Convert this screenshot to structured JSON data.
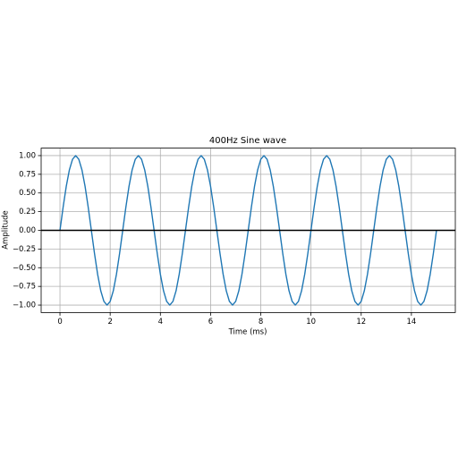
{
  "chart_data": {
    "type": "line",
    "title": "400Hz Sine wave",
    "xlabel": "Time (ms)",
    "ylabel": "Amplitude",
    "x": [
      0,
      0.125,
      0.25,
      0.375,
      0.5,
      0.625,
      0.75,
      0.875,
      1,
      1.125,
      1.25,
      1.375,
      1.5,
      1.625,
      1.75,
      1.875,
      2,
      2.125,
      2.25,
      2.375,
      2.5,
      2.625,
      2.75,
      2.875,
      3,
      3.125,
      3.25,
      3.375,
      3.5,
      3.625,
      3.75,
      3.875,
      4,
      4.125,
      4.25,
      4.375,
      4.5,
      4.625,
      4.75,
      4.875,
      5,
      5.125,
      5.25,
      5.375,
      5.5,
      5.625,
      5.75,
      5.875,
      6,
      6.125,
      6.25,
      6.375,
      6.5,
      6.625,
      6.75,
      6.875,
      7,
      7.125,
      7.25,
      7.375,
      7.5,
      7.625,
      7.75,
      7.875,
      8,
      8.125,
      8.25,
      8.375,
      8.5,
      8.625,
      8.75,
      8.875,
      9,
      9.125,
      9.25,
      9.375,
      9.5,
      9.625,
      9.75,
      9.875,
      10,
      10.125,
      10.25,
      10.375,
      10.5,
      10.625,
      10.75,
      10.875,
      11,
      11.125,
      11.25,
      11.375,
      11.5,
      11.625,
      11.75,
      11.875,
      12,
      12.125,
      12.25,
      12.375,
      12.5,
      12.625,
      12.75,
      12.875,
      13,
      13.125,
      13.25,
      13.375,
      13.5,
      13.625,
      13.75,
      13.875,
      14,
      14.125,
      14.25,
      14.375,
      14.5,
      14.625,
      14.75,
      14.875,
      15
    ],
    "values": [
      0,
      0.309,
      0.5878,
      0.809,
      0.9511,
      1,
      0.9511,
      0.809,
      0.5878,
      0.309,
      0,
      -0.309,
      -0.5878,
      -0.809,
      -0.9511,
      -1,
      -0.9511,
      -0.809,
      -0.5878,
      -0.309,
      0,
      0.309,
      0.5878,
      0.809,
      0.9511,
      1,
      0.9511,
      0.809,
      0.5878,
      0.309,
      0,
      -0.309,
      -0.5878,
      -0.809,
      -0.9511,
      -1,
      -0.9511,
      -0.809,
      -0.5878,
      -0.309,
      0,
      0.309,
      0.5878,
      0.809,
      0.9511,
      1,
      0.9511,
      0.809,
      0.5878,
      0.309,
      0,
      -0.309,
      -0.5878,
      -0.809,
      -0.9511,
      -1,
      -0.9511,
      -0.809,
      -0.5878,
      -0.309,
      0,
      0.309,
      0.5878,
      0.809,
      0.9511,
      1,
      0.9511,
      0.809,
      0.5878,
      0.309,
      0,
      -0.309,
      -0.5878,
      -0.809,
      -0.9511,
      -1,
      -0.9511,
      -0.809,
      -0.5878,
      -0.309,
      0,
      0.309,
      0.5878,
      0.809,
      0.9511,
      1,
      0.9511,
      0.809,
      0.5878,
      0.309,
      0,
      -0.309,
      -0.5878,
      -0.809,
      -0.9511,
      -1,
      -0.9511,
      -0.809,
      -0.5878,
      -0.309,
      0,
      0.309,
      0.5878,
      0.809,
      0.9511,
      1,
      0.9511,
      0.809,
      0.5878,
      0.309,
      0,
      -0.309,
      -0.5878,
      -0.809,
      -0.9511,
      -1,
      -0.9511,
      -0.809,
      -0.5878,
      -0.309,
      0
    ],
    "color": "#1f77b4",
    "axhline": 0,
    "axhline_color": "#000000",
    "grid": true,
    "xlim": [
      -0.75,
      15.75
    ],
    "xticks": [
      0,
      2,
      4,
      6,
      8,
      10,
      12,
      14
    ],
    "ylim": [
      -1.1,
      1.1
    ],
    "yticks": [
      {
        "value": 1,
        "label": "1.00"
      },
      {
        "value": 0.75,
        "label": "0.75"
      },
      {
        "value": 0.5,
        "label": "0.50"
      },
      {
        "value": 0.25,
        "label": "0.25"
      },
      {
        "value": 0,
        "label": "0.00"
      },
      {
        "value": -0.25,
        "label": "−0.25"
      },
      {
        "value": -0.5,
        "label": "−0.50"
      },
      {
        "value": -0.75,
        "label": "−0.75"
      },
      {
        "value": -1,
        "label": "−1.00"
      }
    ]
  }
}
